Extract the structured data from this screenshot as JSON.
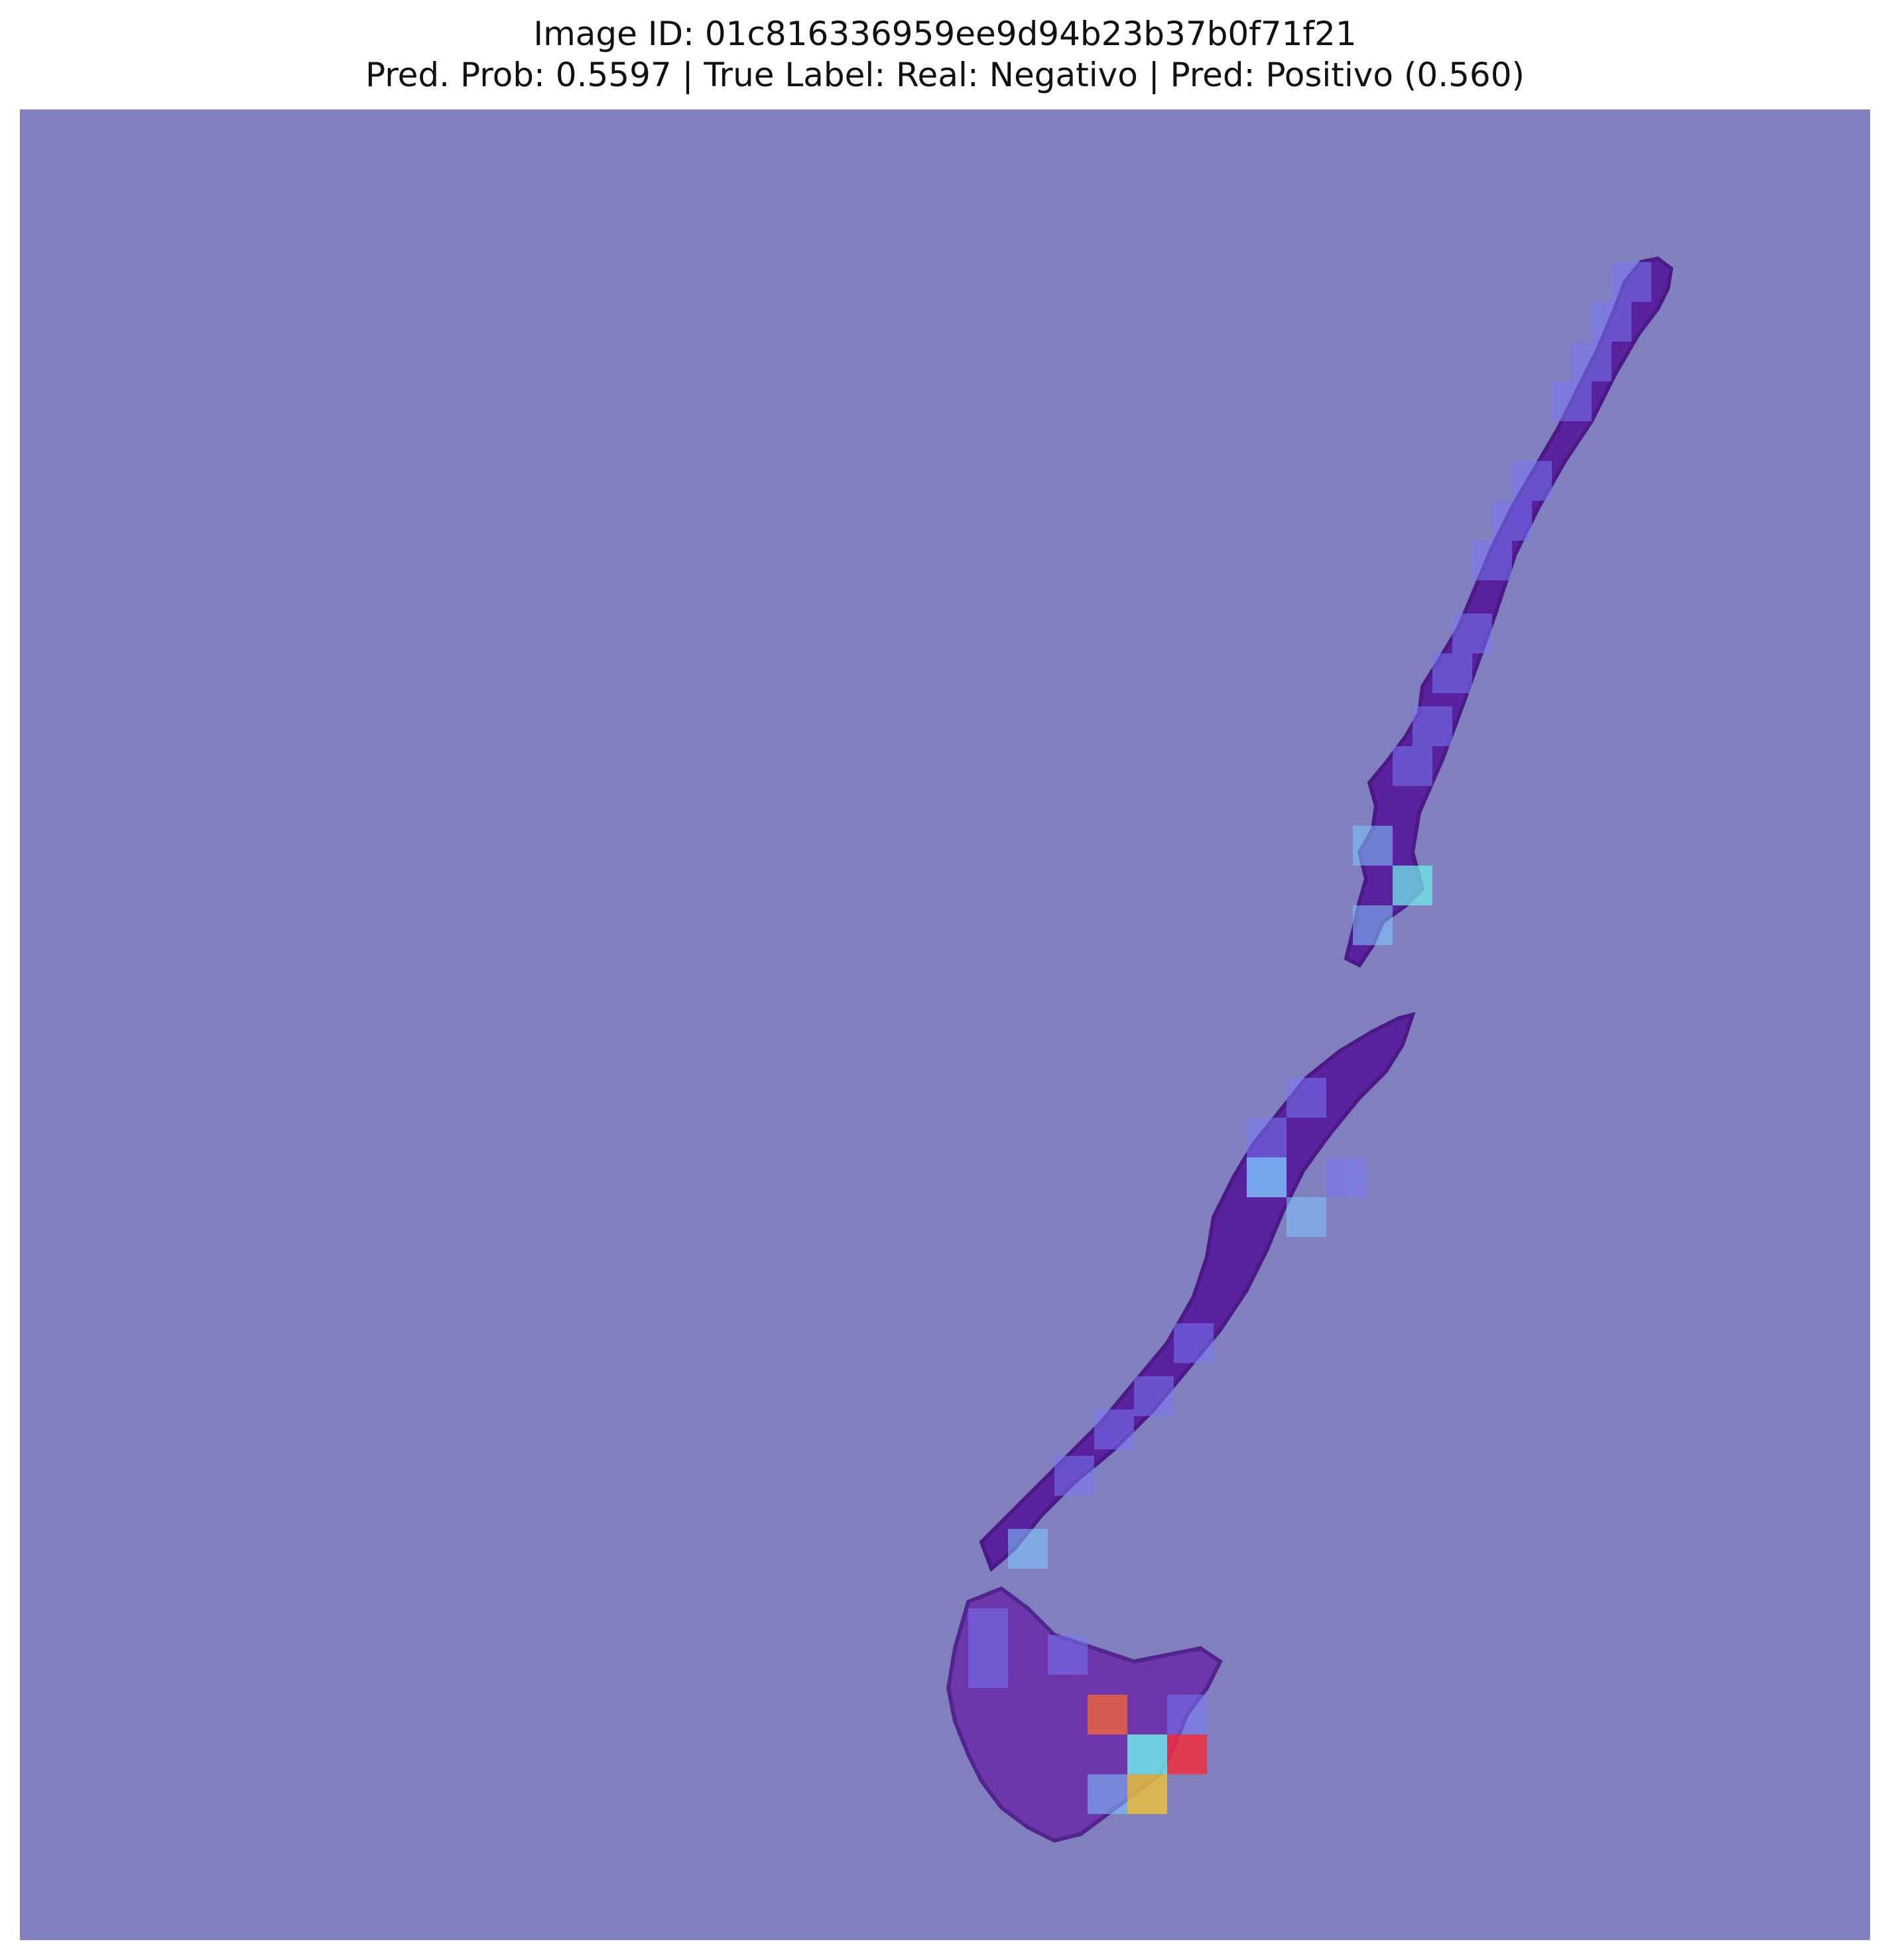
{
  "figure": {
    "title_line1": "Image ID: 01c816336959ee9d94b23b37b0f71f21",
    "title_line2": "Pred. Prob: 0.5597 | True Label: Real: Negativo | Pred: Positivo (0.560)"
  },
  "heatmap": {
    "background_color": "#8180be",
    "tissue_color": "#5a1e9e",
    "tissue_dark_color": "#4a1585",
    "colormap": "jet",
    "overlay_colors": {
      "low": "#8180be",
      "low_mid": "#7878f5",
      "mid": "#80c8ff",
      "mid_high": "#70e8e8",
      "high_yellow": "#e8c040",
      "high_orange": "#e86040",
      "high_red": "#f03040"
    }
  }
}
